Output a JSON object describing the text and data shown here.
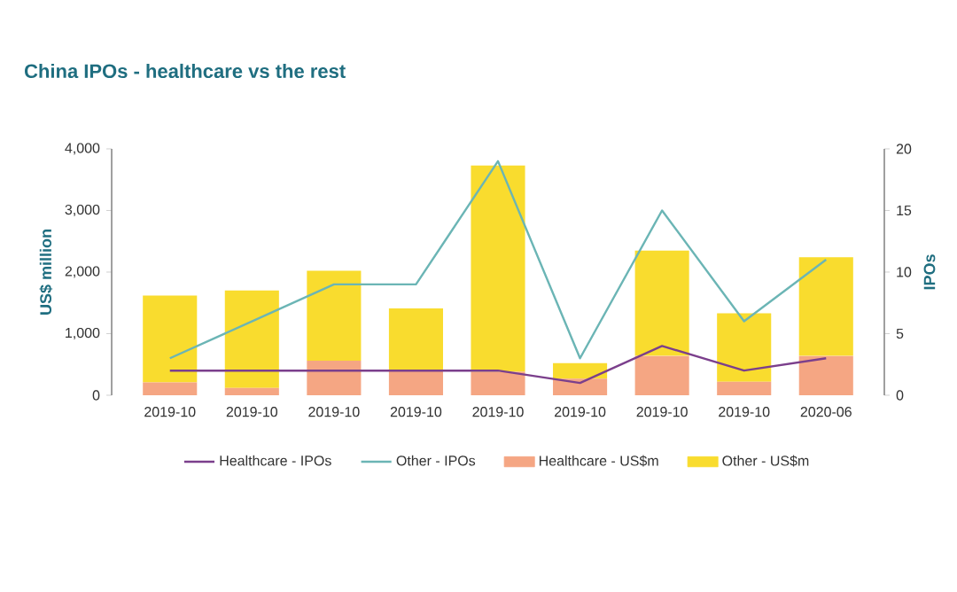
{
  "chart_data": {
    "type": "bar",
    "title": "China IPOs - healthcare vs the rest",
    "ylabel": "US$ million",
    "y2label": "IPOs",
    "categories": [
      "2019-10",
      "2019-10",
      "2019-10",
      "2019-10",
      "2019-10",
      "2019-10",
      "2019-10",
      "2019-10",
      "2020-06"
    ],
    "stacked": true,
    "legend": "bottom",
    "ylim": [
      0,
      4000
    ],
    "yticks": [
      0,
      {
        "value": 1000,
        "label": "1,000"
      },
      {
        "value": 2000,
        "label": "2,000"
      },
      {
        "value": 3000,
        "label": "3,000"
      },
      {
        "value": 4000,
        "label": "4,000"
      }
    ],
    "y2lim": [
      0,
      20
    ],
    "y2ticks": [
      0,
      5,
      10,
      15,
      20
    ],
    "series": [
      {
        "name": "Healthcare - IPOs",
        "type": "line",
        "axis": "y2",
        "color": "#7b3f8c",
        "values": [
          2,
          2,
          2,
          2,
          2,
          1,
          4,
          2,
          3
        ]
      },
      {
        "name": "Other - IPOs",
        "type": "line",
        "axis": "y2",
        "color": "#6bb5b5",
        "values": [
          3,
          6,
          9,
          9,
          19,
          3,
          15,
          6,
          11
        ]
      },
      {
        "name": "Healthcare - US$m",
        "color": "#f5a683",
        "values": [
          210,
          120,
          560,
          400,
          380,
          270,
          640,
          220,
          640
        ]
      },
      {
        "name": "Other - US$m",
        "color": "#f9dc2e",
        "values": [
          1410,
          1580,
          1460,
          1010,
          3350,
          250,
          1710,
          1110,
          1600
        ]
      }
    ]
  }
}
